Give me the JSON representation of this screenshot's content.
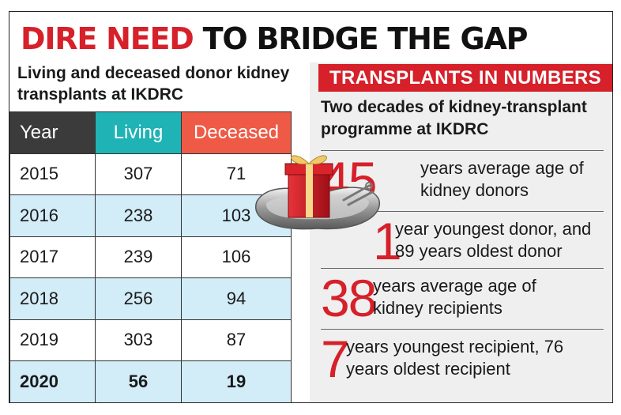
{
  "headline": {
    "part1": "DIRE NEED",
    "part2": "TO BRIDGE THE GAP"
  },
  "left": {
    "subtitle": "Living and deceased donor kidney transplants at IKDRC"
  },
  "chart_data": {
    "type": "table",
    "title": "Living and deceased donor kidney transplants at IKDRC",
    "columns": [
      "Year",
      "Living",
      "Deceased"
    ],
    "rows": [
      {
        "year": "2015",
        "living": "307",
        "deceased": "71"
      },
      {
        "year": "2016",
        "living": "238",
        "deceased": "103"
      },
      {
        "year": "2017",
        "living": "239",
        "deceased": "106"
      },
      {
        "year": "2018",
        "living": "256",
        "deceased": "94"
      },
      {
        "year": "2019",
        "living": "303",
        "deceased": "87"
      },
      {
        "year": "2020",
        "living": "56",
        "deceased": "19"
      }
    ],
    "highlight_last_row": true
  },
  "right": {
    "banner": "TRANSPLANTS IN NUMBERS",
    "subtitle": "Two decades of kidney-transplant programme at IKDRC",
    "stats": [
      {
        "value": "45",
        "text_line1": "years average age of",
        "text_line2": "kidney donors"
      },
      {
        "value": "1",
        "text_line1": "year youngest donor, and",
        "text_line2": "89 years oldest donor"
      },
      {
        "value": "38",
        "text_line1": "years average age of",
        "text_line2": "kidney recipients"
      },
      {
        "value": "7",
        "text_line1": "years youngest recipient, 76",
        "text_line2": "years oldest recipient"
      }
    ]
  },
  "colors": {
    "accent_red": "#d6202a",
    "year_header": "#3b3b3b",
    "living_header": "#1fb3b5",
    "deceased_header": "#ee5a45",
    "row_shade": "#d2ecf8"
  },
  "illustration": {
    "icon": "gift-box-on-kidney-tray-icon"
  }
}
